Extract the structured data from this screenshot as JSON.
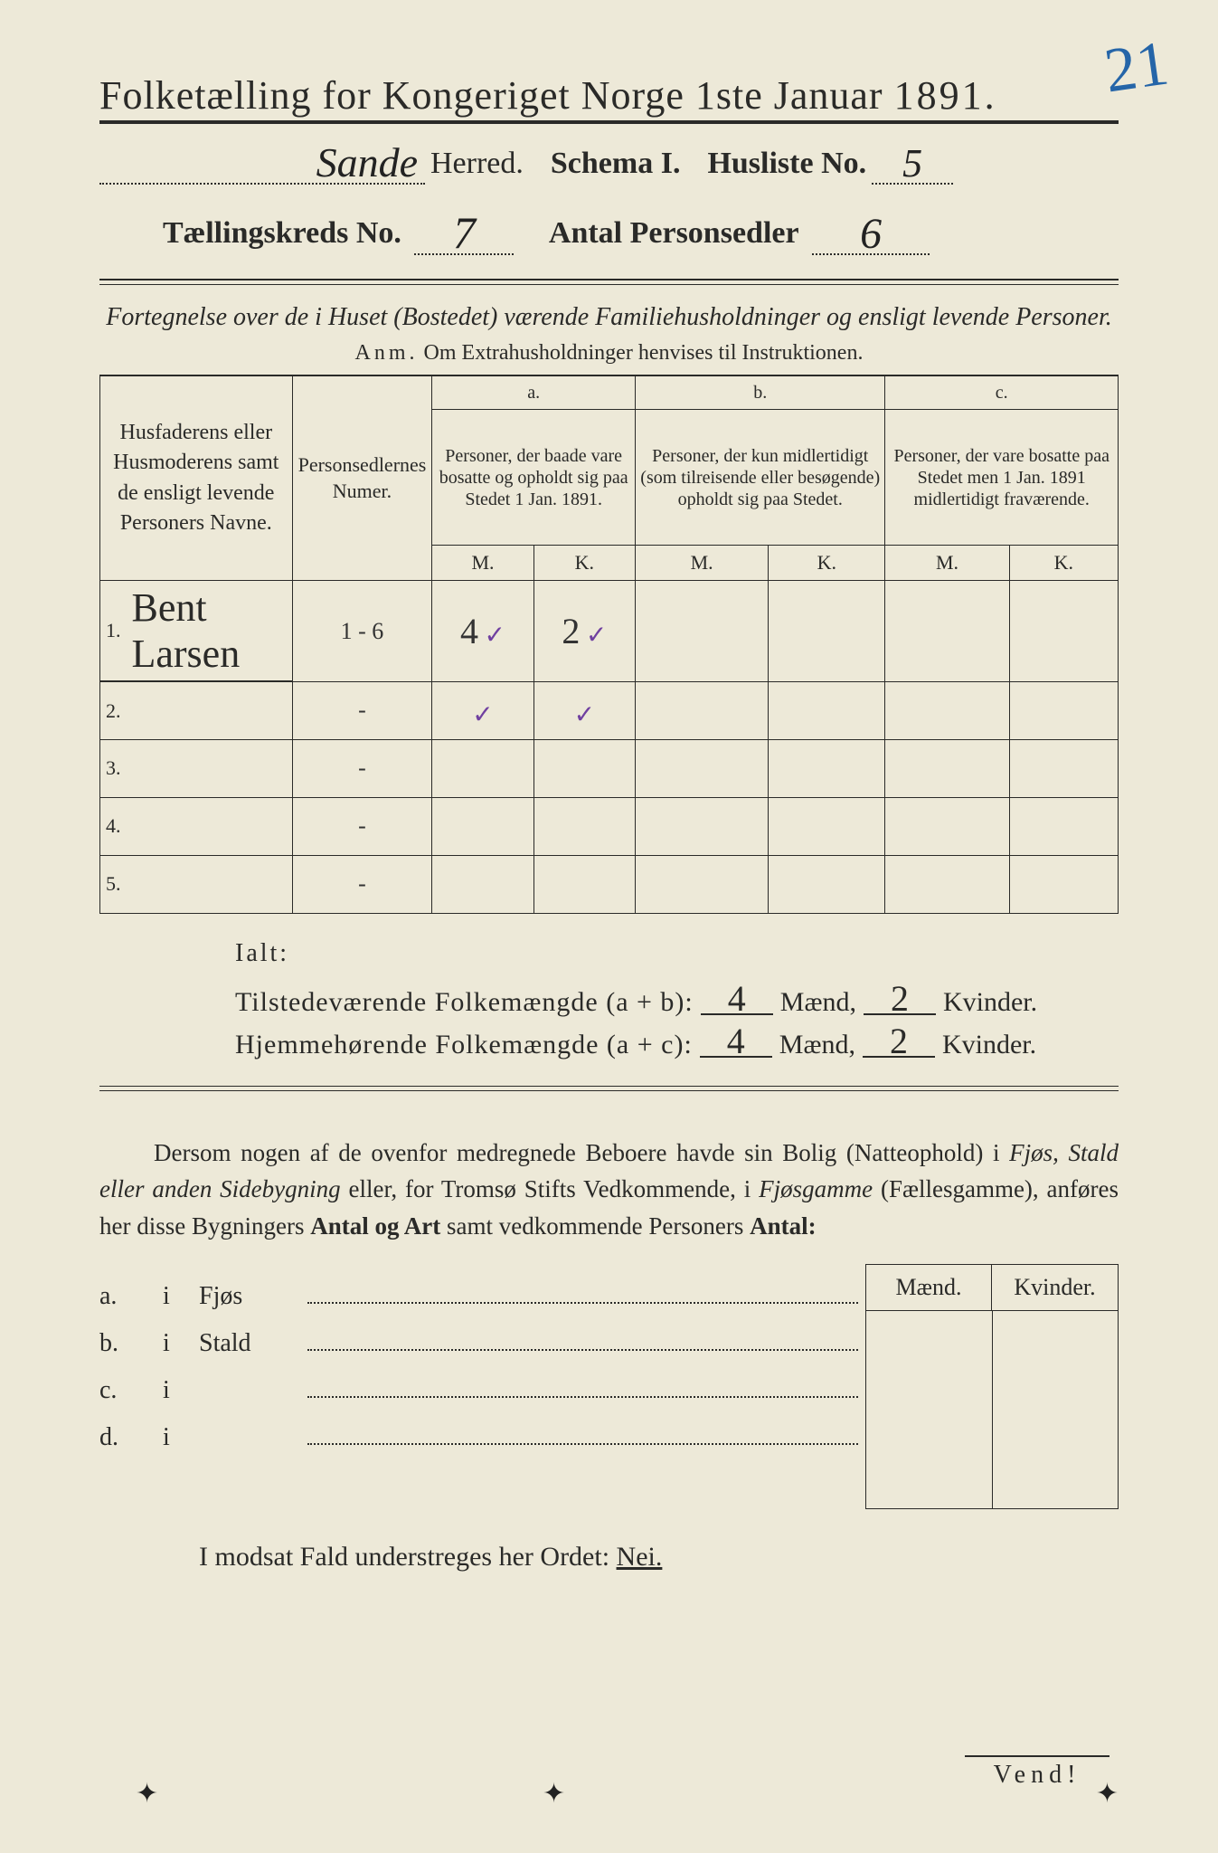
{
  "corner_number": "21",
  "title": {
    "main": "Folketælling for Kongeriget Norge 1ste Januar",
    "year": "1891."
  },
  "header": {
    "herred_value": "Sande",
    "herred_label": "Herred.",
    "schema_label": "Schema I.",
    "husliste_label": "Husliste No.",
    "husliste_value": "5",
    "kreds_label": "Tællingskreds No.",
    "kreds_value": "7",
    "antal_label": "Antal Personsedler",
    "antal_value": "6"
  },
  "section": {
    "fortegnelse": "Fortegnelse over de i Huset (Bostedet) værende Familiehusholdninger og ensligt levende Personer.",
    "anm_prefix": "Anm.",
    "anm_text": "Om Extrahusholdninger henvises til Instruktionen."
  },
  "table": {
    "columns": {
      "name": "Husfaderens eller Husmoderens samt de ensligt levende Personers Navne.",
      "numer": "Personsedlernes Numer.",
      "a_label": "a.",
      "a_text": "Personer, der baade vare bosatte og opholdt sig paa Stedet 1 Jan. 1891.",
      "b_label": "b.",
      "b_text": "Personer, der kun midlertidigt (som tilreisende eller besøgende) opholdt sig paa Stedet.",
      "c_label": "c.",
      "c_text": "Personer, der vare bosatte paa Stedet men 1 Jan. 1891 midlertidigt fraværende.",
      "m": "M.",
      "k": "K."
    },
    "rows": [
      {
        "n": "1.",
        "name": "Bent Larsen",
        "numer": "1 - 6",
        "a_m": "4",
        "a_m_tick": "✓",
        "a_k": "2",
        "a_k_tick": "✓",
        "b_m": "",
        "b_k": "",
        "c_m": "",
        "c_k": ""
      },
      {
        "n": "2.",
        "name": "",
        "numer": "-",
        "a_m": "",
        "a_m_tick": "✓",
        "a_k": "",
        "a_k_tick": "✓",
        "b_m": "",
        "b_k": "",
        "c_m": "",
        "c_k": ""
      },
      {
        "n": "3.",
        "name": "",
        "numer": "-",
        "a_m": "",
        "a_m_tick": "",
        "a_k": "",
        "a_k_tick": "",
        "b_m": "",
        "b_k": "",
        "c_m": "",
        "c_k": ""
      },
      {
        "n": "4.",
        "name": "",
        "numer": "-",
        "a_m": "",
        "a_m_tick": "",
        "a_k": "",
        "a_k_tick": "",
        "b_m": "",
        "b_k": "",
        "c_m": "",
        "c_k": ""
      },
      {
        "n": "5.",
        "name": "",
        "numer": "-",
        "a_m": "",
        "a_m_tick": "",
        "a_k": "",
        "a_k_tick": "",
        "b_m": "",
        "b_k": "",
        "c_m": "",
        "c_k": ""
      }
    ]
  },
  "totals": {
    "ialt_label": "Ialt:",
    "line1_label": "Tilstedeværende Folkemængde (a + b):",
    "line1_m": "4",
    "line1_k": "2",
    "line2_label": "Hjemmehørende Folkemængde (a + c):",
    "line2_m": "4",
    "line2_k": "2",
    "maend": "Mænd,",
    "kvinder": "Kvinder."
  },
  "dersom": {
    "text_pre": "Dersom nogen af de ovenfor medregnede Beboere havde sin Bolig (Natteophold) i ",
    "ital1": "Fjøs, Stald eller anden Sidebygning",
    "mid1": " eller, for Tromsø Stifts Vedkommende, i ",
    "ital2": "Fjøsgamme",
    "paren": " (Fællesgamme), anføres her disse Bygningers ",
    "bold1": "Antal og Art",
    "mid2": " samt vedkommende Personers ",
    "bold2": "Antal:"
  },
  "bottom": {
    "maend": "Mænd.",
    "kvinder": "Kvinder.",
    "rows": [
      {
        "tag": "a.",
        "i": "i",
        "word": "Fjøs"
      },
      {
        "tag": "b.",
        "i": "i",
        "word": "Stald"
      },
      {
        "tag": "c.",
        "i": "i",
        "word": ""
      },
      {
        "tag": "d.",
        "i": "i",
        "word": ""
      }
    ]
  },
  "modsat": {
    "text": "I modsat Fald understreges her Ordet: ",
    "nei": "Nei."
  },
  "vend": "Vend!"
}
